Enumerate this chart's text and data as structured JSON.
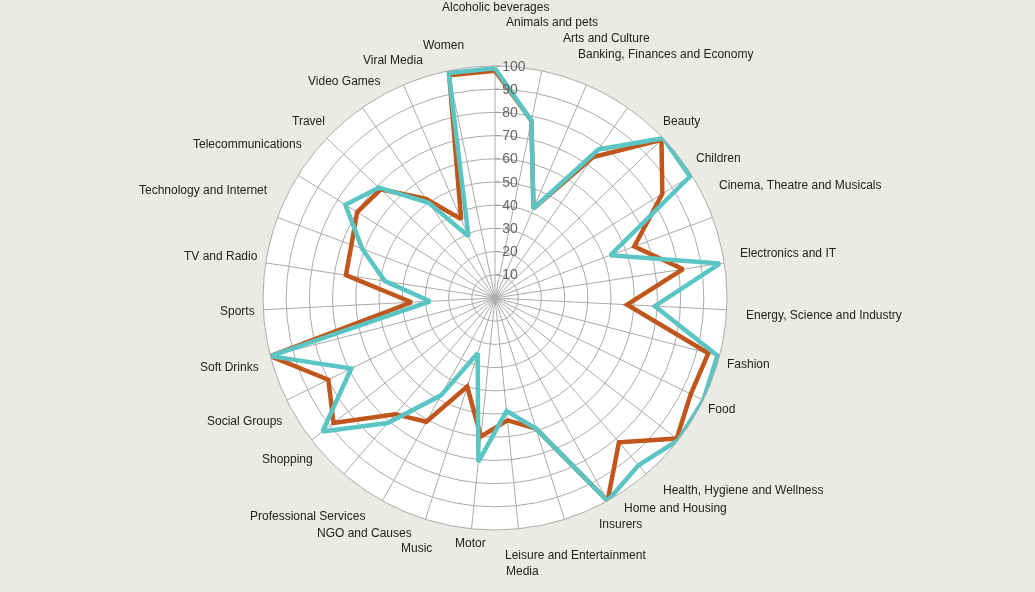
{
  "chart_data": {
    "type": "radar",
    "categories": [
      "Alcoholic beverages",
      "Animals and pets",
      "Arts and Culture",
      "Banking, Finances and Economy",
      "Beauty",
      "Children",
      "Cinema, Theatre and Musicals",
      "Electronics and IT",
      "Energy, Science and Industry",
      "Fashion",
      "Food",
      "Health, Hygiene and Wellness",
      "Home and Housing",
      "Insurers",
      "Leisure and Entertainment",
      "Media",
      "Motor",
      "Music",
      "NGO and Causes",
      "Professional Services",
      "Shopping",
      "Social Groups",
      "Soft Drinks",
      "Sports",
      "TV and Radio",
      "Technology and Internet",
      "Telecommunications",
      "Travel",
      "Video Games",
      "Viral Media",
      "Women"
    ],
    "series": [
      {
        "color": "#c0561c",
        "values": [
          98,
          78,
          42,
          74,
          99,
          85,
          64,
          82,
          57,
          95,
          94,
          99,
          82,
          100,
          59,
          53,
          60,
          40,
          61,
          66,
          88,
          80,
          100,
          36,
          65,
          66,
          70,
          68,
          52,
          37,
          98
        ]
      },
      {
        "color": "#5bc5c4",
        "values": [
          99,
          78,
          42,
          78,
          100,
          99,
          53,
          98,
          69,
          99,
          100,
          100,
          95,
          100,
          59,
          49,
          71,
          25,
          48,
          71,
          94,
          69,
          100,
          28,
          48,
          61,
          76,
          69,
          50,
          29,
          99
        ]
      }
    ],
    "ylim": [
      0,
      100
    ],
    "yticks": [
      10,
      20,
      30,
      40,
      50,
      60,
      70,
      80,
      90,
      100
    ],
    "grid": true,
    "marker": "none",
    "line_style": "solid"
  }
}
